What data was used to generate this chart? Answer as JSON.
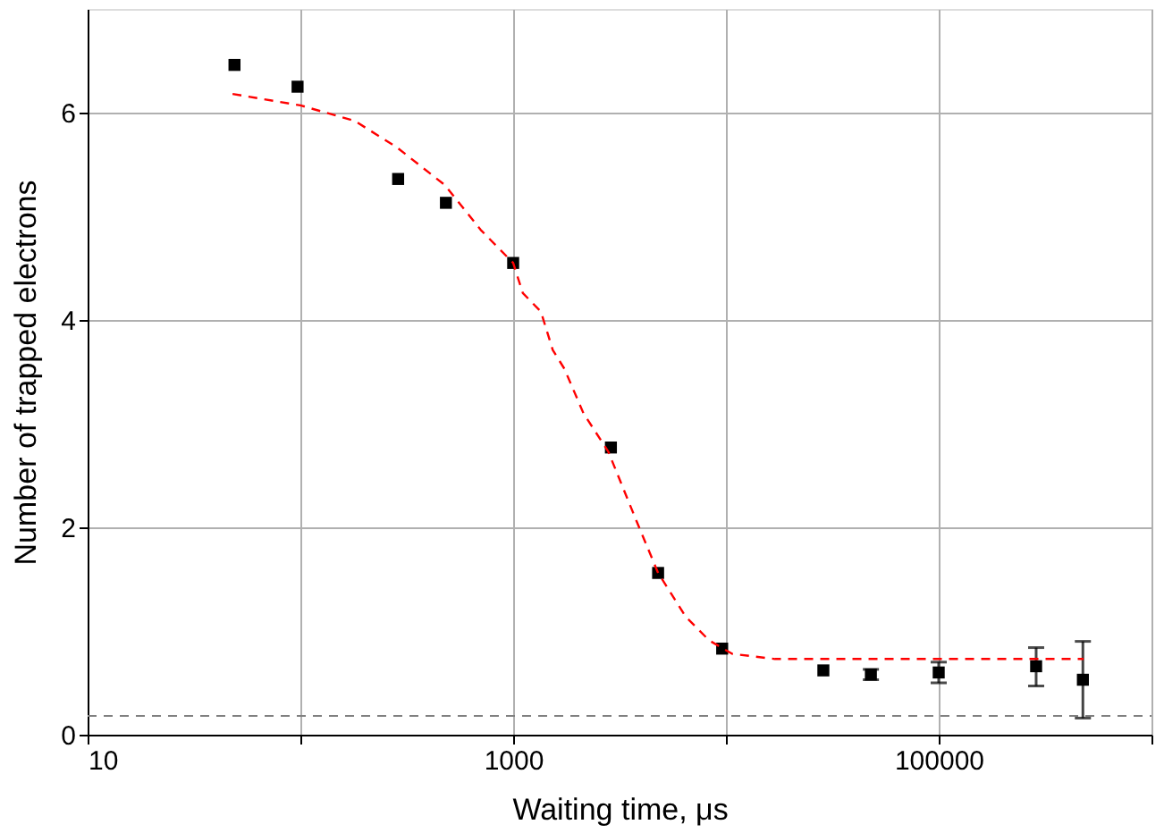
{
  "chart_data": {
    "type": "scatter",
    "xlabel": "Waiting time, μs",
    "ylabel": "Number of trapped electrons",
    "log": "x",
    "xlim": [
      10,
      1000000
    ],
    "ylim": [
      0,
      7
    ],
    "xticks": [
      10,
      {
        "value": 100,
        "label": null
      },
      1000,
      {
        "value": 10000,
        "label": null
      },
      100000,
      {
        "value": 1000000,
        "label": null
      }
    ],
    "yticks": [
      0,
      2,
      4,
      6
    ],
    "grid": true,
    "series": [
      {
        "color": "#000000",
        "marker": "square",
        "x": [
          49,
          97,
          288,
          483,
          1000,
          2880,
          4800,
          9600,
          28700,
          48000,
          100000,
          287000,
          476000
        ],
        "values": [
          6.46,
          6.25,
          5.36,
          5.13,
          4.55,
          2.77,
          1.56,
          0.83,
          0.62,
          0.58,
          0.6,
          0.66,
          0.53
        ],
        "errors": [
          null,
          null,
          null,
          null,
          null,
          null,
          null,
          null,
          null,
          0.05,
          0.1,
          [
            0.47,
            0.84
          ],
          [
            0.16,
            0.9
          ]
        ]
      },
      {
        "type": "line",
        "color": "#ff0000",
        "line_style": "dashed",
        "marker": "none",
        "x": [
          48,
          100,
          180,
          282,
          478,
          703,
          1000,
          1110,
          1350,
          1535,
          1740,
          2140,
          2800,
          3800,
          4800,
          6460,
          8330,
          10700,
          17000,
          51000,
          480000
        ],
        "values": [
          6.18,
          6.07,
          5.92,
          5.67,
          5.3,
          4.87,
          4.55,
          4.26,
          4.08,
          3.71,
          3.53,
          3.1,
          2.73,
          2.06,
          1.56,
          1.14,
          0.91,
          0.78,
          0.73,
          0.73,
          0.73
        ]
      }
    ],
    "ref_lines": [
      {
        "axis": "y",
        "value": 0.18,
        "label": null,
        "color": "#808080",
        "line_style": "dashed"
      }
    ]
  }
}
